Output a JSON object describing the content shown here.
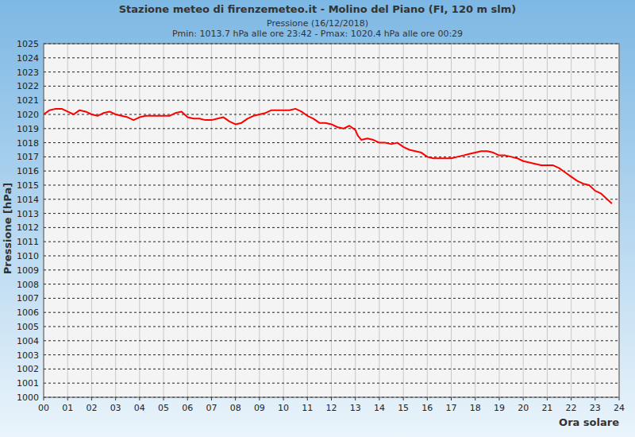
{
  "chart_data": {
    "type": "line",
    "title": "Stazione meteo di firenzemeteo.it - Molino del Piano (FI, 120 m slm)",
    "subtitle": [
      "Pressione (16/12/2018)",
      "Pmin: 1013.7 hPa alle ore 23:42 - Pmax: 1020.4 hPa alle ore 00:29"
    ],
    "x_label": "Ora solare",
    "y_label": "Pressione [hPa]",
    "x": [
      0,
      0.25,
      0.5,
      0.75,
      1,
      1.25,
      1.5,
      1.75,
      2,
      2.25,
      2.5,
      2.75,
      3,
      3.25,
      3.5,
      3.75,
      4,
      4.25,
      4.5,
      4.75,
      5,
      5.25,
      5.5,
      5.75,
      6,
      6.25,
      6.5,
      6.75,
      7,
      7.25,
      7.5,
      7.75,
      8,
      8.25,
      8.5,
      8.75,
      9,
      9.25,
      9.5,
      9.75,
      10,
      10.25,
      10.5,
      10.75,
      11,
      11.25,
      11.5,
      11.75,
      12,
      12.25,
      12.5,
      12.75,
      13,
      13.1,
      13.25,
      13.5,
      13.75,
      14,
      14.25,
      14.5,
      14.75,
      15,
      15.25,
      15.5,
      15.75,
      16,
      16.25,
      16.5,
      16.75,
      17,
      17.25,
      17.5,
      17.75,
      18,
      18.25,
      18.5,
      18.75,
      19,
      19.25,
      19.5,
      19.75,
      20,
      20.25,
      20.5,
      20.75,
      21,
      21.25,
      21.5,
      21.75,
      22,
      22.25,
      22.5,
      22.75,
      23,
      23.25,
      23.5,
      23.7
    ],
    "series": [
      {
        "name": "Pressione",
        "color": "#ff0000",
        "values": [
          1020.0,
          1020.3,
          1020.4,
          1020.4,
          1020.2,
          1020.0,
          1020.3,
          1020.2,
          1020.0,
          1019.9,
          1020.1,
          1020.2,
          1020.0,
          1019.9,
          1019.8,
          1019.6,
          1019.8,
          1019.9,
          1019.9,
          1019.9,
          1019.9,
          1019.9,
          1020.1,
          1020.2,
          1019.8,
          1019.7,
          1019.7,
          1019.6,
          1019.6,
          1019.7,
          1019.8,
          1019.5,
          1019.3,
          1019.4,
          1019.7,
          1019.9,
          1020.0,
          1020.1,
          1020.3,
          1020.3,
          1020.3,
          1020.3,
          1020.4,
          1020.2,
          1019.9,
          1019.7,
          1019.4,
          1019.4,
          1019.3,
          1019.1,
          1019.0,
          1019.2,
          1018.9,
          1018.5,
          1018.2,
          1018.3,
          1018.2,
          1018.0,
          1018.0,
          1017.9,
          1018.0,
          1017.7,
          1017.5,
          1017.4,
          1017.3,
          1017.0,
          1016.9,
          1016.9,
          1016.9,
          1016.9,
          1017.0,
          1017.1,
          1017.2,
          1017.3,
          1017.4,
          1017.4,
          1017.3,
          1017.1,
          1017.1,
          1017.0,
          1016.9,
          1016.7,
          1016.6,
          1016.5,
          1016.4,
          1016.4,
          1016.4,
          1016.2,
          1015.9,
          1015.6,
          1015.3,
          1015.1,
          1015.0,
          1014.6,
          1014.4,
          1014.0,
          1013.7
        ]
      }
    ],
    "xlim": [
      0,
      24
    ],
    "ylim": [
      1000,
      1025
    ],
    "xticks": [
      {
        "value": 0,
        "label": "00"
      },
      {
        "value": 1,
        "label": "01"
      },
      {
        "value": 2,
        "label": "02"
      },
      {
        "value": 3,
        "label": "03"
      },
      {
        "value": 4,
        "label": "04"
      },
      {
        "value": 5,
        "label": "05"
      },
      {
        "value": 6,
        "label": "06"
      },
      {
        "value": 7,
        "label": "07"
      },
      {
        "value": 8,
        "label": "08"
      },
      {
        "value": 9,
        "label": "09"
      },
      10,
      11,
      12,
      13,
      14,
      15,
      16,
      17,
      18,
      19,
      20,
      21,
      22,
      23,
      24
    ],
    "yticks": [
      1000,
      1001,
      1002,
      1003,
      1004,
      1005,
      1006,
      1007,
      1008,
      1009,
      1010,
      1011,
      1012,
      1013,
      1014,
      1015,
      1016,
      1017,
      1018,
      1019,
      1020,
      1021,
      1022,
      1023,
      1024,
      1025
    ],
    "grid": true
  }
}
